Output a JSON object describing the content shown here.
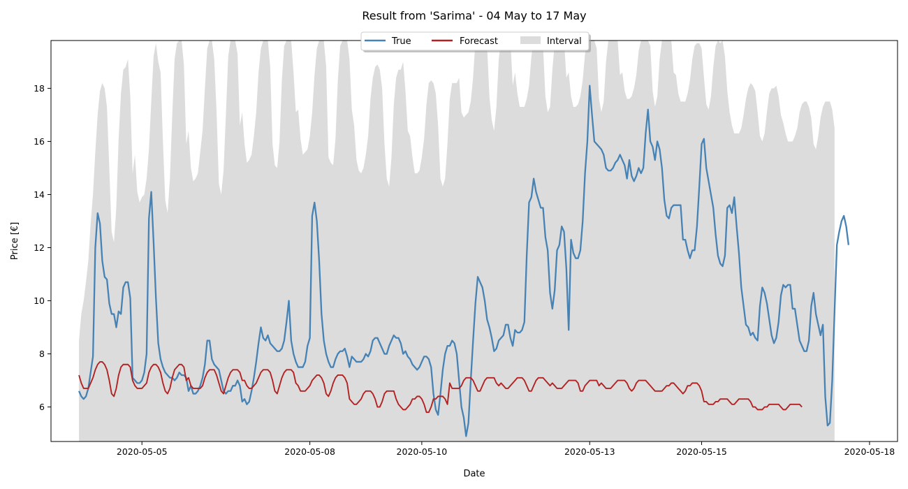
{
  "chart_data": {
    "type": "line",
    "title": "Result from 'Sarima' - 04 May to 17 May",
    "xlabel": "Date",
    "ylabel": "Price [€]",
    "x_range": [
      "2020-05-03 09:00",
      "2020-05-18 12:00"
    ],
    "ylim": [
      4.7,
      19.8
    ],
    "x_ticks": [
      "2020-05-05",
      "2020-05-08",
      "2020-05-10",
      "2020-05-13",
      "2020-05-15",
      "2020-05-18"
    ],
    "y_ticks": [
      6,
      8,
      10,
      12,
      14,
      16,
      18
    ],
    "grid": false,
    "legend": {
      "placement": "top-center",
      "entries": [
        "True",
        "Forecast",
        "Interval"
      ]
    },
    "x_start": "2020-05-03 21:00",
    "x_step_hours": 1,
    "series": [
      {
        "name": "True",
        "color": "#4682b4",
        "values": [
          6.6,
          6.4,
          6.3,
          6.4,
          6.7,
          7.3,
          7.9,
          12.0,
          13.3,
          12.9,
          11.5,
          10.9,
          10.8,
          9.9,
          9.5,
          9.5,
          9.0,
          9.6,
          9.5,
          10.5,
          10.7,
          10.7,
          10.1,
          7.1,
          7.0,
          6.9,
          6.9,
          7.0,
          7.3,
          8.0,
          13.1,
          14.1,
          12.2,
          10.1,
          8.4,
          7.8,
          7.5,
          7.3,
          7.2,
          7.1,
          7.1,
          7.0,
          7.1,
          7.3,
          7.2,
          7.2,
          7.1,
          6.6,
          6.8,
          6.5,
          6.5,
          6.6,
          6.8,
          7.1,
          7.6,
          8.5,
          8.5,
          7.8,
          7.6,
          7.5,
          7.4,
          7.0,
          6.6,
          6.5,
          6.6,
          6.6,
          6.8,
          6.8,
          7.0,
          6.8,
          6.2,
          6.3,
          6.1,
          6.2,
          6.6,
          7.1,
          7.7,
          8.4,
          9.0,
          8.6,
          8.5,
          8.7,
          8.4,
          8.3,
          8.2,
          8.1,
          8.1,
          8.2,
          8.5,
          9.2,
          10.0,
          8.5,
          8.0,
          7.7,
          7.5,
          7.5,
          7.5,
          7.7,
          8.3,
          8.6,
          13.2,
          13.7,
          13.0,
          11.5,
          9.5,
          8.5,
          8.0,
          7.7,
          7.5,
          7.5,
          7.8,
          8.0,
          8.1,
          8.1,
          8.2,
          7.9,
          7.5,
          7.9,
          7.8,
          7.7,
          7.7,
          7.7,
          7.8,
          8.0,
          7.9,
          8.1,
          8.5,
          8.6,
          8.6,
          8.4,
          8.2,
          8.0,
          8.0,
          8.3,
          8.5,
          8.7,
          8.6,
          8.6,
          8.4,
          8.0,
          8.1,
          7.9,
          7.8,
          7.6,
          7.5,
          7.4,
          7.5,
          7.7,
          7.9,
          7.9,
          7.8,
          7.5,
          6.5,
          5.9,
          5.7,
          6.5,
          7.4,
          8.0,
          8.3,
          8.3,
          8.5,
          8.4,
          8.0,
          7.0,
          6.0,
          5.6,
          4.9,
          5.4,
          7.0,
          8.5,
          9.9,
          10.9,
          10.7,
          10.5,
          10.0,
          9.3,
          9.0,
          8.6,
          8.1,
          8.2,
          8.5,
          8.6,
          8.7,
          9.1,
          9.1,
          8.6,
          8.3,
          8.9,
          8.8,
          8.8,
          8.9,
          9.2,
          11.7,
          13.7,
          13.9,
          14.6,
          14.1,
          13.8,
          13.5,
          13.5,
          12.4,
          11.9,
          10.3,
          9.7,
          10.4,
          11.9,
          12.1,
          12.8,
          12.6,
          11.2,
          8.9,
          12.3,
          11.8,
          11.6,
          11.6,
          11.9,
          13.0,
          14.8,
          16.0,
          18.1,
          17.0,
          16.0,
          15.9,
          15.8,
          15.7,
          15.5,
          15.0,
          14.9,
          14.9,
          15.0,
          15.2,
          15.3,
          15.5,
          15.3,
          15.1,
          14.6,
          15.3,
          14.7,
          14.5,
          14.7,
          15.0,
          14.8,
          15.0,
          16.3,
          17.2,
          16.0,
          15.8,
          15.3,
          16.0,
          15.7,
          15.0,
          13.8,
          13.2,
          13.1,
          13.5,
          13.6,
          13.6,
          13.6,
          13.6,
          12.3,
          12.3,
          11.9,
          11.6,
          11.9,
          11.9,
          12.8,
          14.3,
          15.9,
          16.1,
          15.0,
          14.5,
          14.0,
          13.5,
          12.5,
          11.7,
          11.4,
          11.3,
          11.7,
          13.5,
          13.6,
          13.3,
          13.9,
          12.8,
          11.8,
          10.5,
          9.8,
          9.1,
          9.0,
          8.7,
          8.8,
          8.6,
          8.5,
          9.8,
          10.5,
          10.3,
          9.9,
          9.3,
          8.7,
          8.4,
          8.6,
          9.2,
          10.2,
          10.6,
          10.5,
          10.6,
          10.6,
          9.7,
          9.7,
          9.1,
          8.5,
          8.3,
          8.1,
          8.1,
          8.5,
          9.8,
          10.3,
          9.5,
          9.1,
          8.7,
          9.1,
          6.4,
          5.3,
          5.4,
          7.0,
          9.6,
          12.1,
          12.6,
          13.0,
          13.2,
          12.8,
          12.1
        ]
      },
      {
        "name": "Forecast",
        "color": "#b22222",
        "values": [
          7.2,
          6.9,
          6.7,
          6.7,
          6.7,
          6.9,
          7.1,
          7.4,
          7.6,
          7.7,
          7.7,
          7.6,
          7.4,
          7.0,
          6.5,
          6.4,
          6.7,
          7.2,
          7.5,
          7.6,
          7.6,
          7.6,
          7.5,
          7.0,
          6.8,
          6.7,
          6.7,
          6.7,
          6.8,
          6.9,
          7.3,
          7.5,
          7.6,
          7.6,
          7.5,
          7.3,
          6.9,
          6.6,
          6.5,
          6.7,
          7.1,
          7.4,
          7.5,
          7.6,
          7.6,
          7.5,
          7.0,
          7.1,
          6.8,
          6.7,
          6.7,
          6.7,
          6.7,
          6.8,
          7.1,
          7.3,
          7.4,
          7.4,
          7.4,
          7.2,
          6.9,
          6.6,
          6.5,
          6.8,
          7.1,
          7.3,
          7.4,
          7.4,
          7.4,
          7.3,
          7.0,
          7.0,
          6.8,
          6.7,
          6.7,
          6.8,
          6.9,
          7.1,
          7.3,
          7.4,
          7.4,
          7.4,
          7.3,
          7.0,
          6.6,
          6.5,
          6.8,
          7.1,
          7.3,
          7.4,
          7.4,
          7.4,
          7.3,
          6.9,
          6.8,
          6.6,
          6.6,
          6.6,
          6.7,
          6.8,
          7.0,
          7.1,
          7.2,
          7.2,
          7.1,
          6.9,
          6.5,
          6.4,
          6.6,
          6.9,
          7.1,
          7.2,
          7.2,
          7.2,
          7.1,
          6.9,
          6.3,
          6.2,
          6.1,
          6.1,
          6.2,
          6.3,
          6.5,
          6.6,
          6.6,
          6.6,
          6.5,
          6.3,
          6.0,
          6.0,
          6.2,
          6.5,
          6.6,
          6.6,
          6.6,
          6.6,
          6.3,
          6.1,
          6.0,
          5.9,
          5.9,
          6.0,
          6.1,
          6.3,
          6.3,
          6.4,
          6.4,
          6.3,
          6.1,
          5.8,
          5.8,
          6.0,
          6.3,
          6.3,
          6.4,
          6.4,
          6.4,
          6.3,
          6.1,
          6.9,
          6.7,
          6.7,
          6.7,
          6.7,
          6.8,
          7.0,
          7.1,
          7.1,
          7.1,
          7.0,
          6.8,
          6.6,
          6.6,
          6.8,
          7.0,
          7.1,
          7.1,
          7.1,
          7.1,
          6.9,
          6.8,
          6.9,
          6.8,
          6.7,
          6.7,
          6.8,
          6.9,
          7.0,
          7.1,
          7.1,
          7.1,
          7.0,
          6.8,
          6.6,
          6.6,
          6.8,
          7.0,
          7.1,
          7.1,
          7.1,
          7.0,
          6.9,
          6.8,
          6.9,
          6.8,
          6.7,
          6.7,
          6.7,
          6.8,
          6.9,
          7.0,
          7.0,
          7.0,
          7.0,
          6.9,
          6.6,
          6.6,
          6.8,
          6.9,
          7.0,
          7.0,
          7.0,
          7.0,
          6.8,
          6.9,
          6.8,
          6.7,
          6.7,
          6.7,
          6.8,
          6.9,
          7.0,
          7.0,
          7.0,
          7.0,
          6.9,
          6.7,
          6.6,
          6.7,
          6.9,
          7.0,
          7.0,
          7.0,
          7.0,
          6.9,
          6.8,
          6.7,
          6.6,
          6.6,
          6.6,
          6.6,
          6.7,
          6.8,
          6.8,
          6.9,
          6.9,
          6.8,
          6.7,
          6.6,
          6.5,
          6.6,
          6.8,
          6.8,
          6.9,
          6.9,
          6.9,
          6.8,
          6.6,
          6.2,
          6.2,
          6.1,
          6.1,
          6.1,
          6.2,
          6.2,
          6.3,
          6.3,
          6.3,
          6.3,
          6.2,
          6.1,
          6.1,
          6.2,
          6.3,
          6.3,
          6.3,
          6.3,
          6.3,
          6.2,
          6.0,
          6.0,
          5.9,
          5.9,
          5.9,
          6.0,
          6.0,
          6.1,
          6.1,
          6.1,
          6.1,
          6.1,
          6.0,
          5.9,
          5.9,
          6.0,
          6.1,
          6.1,
          6.1,
          6.1,
          6.1,
          6.0
        ]
      },
      {
        "name": "Interval",
        "color": "#dcdcdc",
        "lower": 4.7,
        "upper": [
          8.5,
          9.5,
          10.0,
          10.7,
          11.5,
          12.9,
          14.0,
          15.6,
          17.0,
          17.9,
          18.2,
          18.0,
          17.3,
          15.0,
          12.6,
          12.2,
          13.5,
          16.1,
          17.8,
          18.7,
          18.8,
          19.1,
          17.7,
          14.8,
          15.5,
          14.1,
          13.7,
          13.9,
          14.0,
          14.6,
          15.7,
          17.5,
          19.2,
          19.7,
          19.0,
          18.6,
          16.0,
          13.8,
          13.3,
          14.6,
          17.0,
          19.1,
          19.7,
          19.8,
          19.8,
          18.9,
          15.9,
          16.4,
          15.0,
          14.5,
          14.6,
          14.8,
          15.6,
          16.4,
          18.0,
          19.5,
          19.8,
          19.8,
          19.1,
          17.1,
          14.4,
          14.0,
          14.9,
          17.0,
          19.2,
          19.8,
          19.8,
          19.8,
          19.3,
          16.6,
          17.1,
          15.9,
          15.2,
          15.3,
          15.5,
          16.2,
          17.1,
          18.6,
          19.5,
          19.8,
          19.8,
          19.8,
          18.8,
          15.9,
          15.1,
          15.0,
          16.0,
          18.3,
          19.6,
          19.8,
          19.8,
          19.8,
          18.6,
          17.1,
          17.2,
          16.1,
          15.5,
          15.6,
          15.7,
          16.2,
          17.1,
          18.5,
          19.5,
          19.8,
          19.8,
          19.8,
          18.8,
          15.4,
          15.2,
          15.1,
          16.1,
          18.3,
          19.6,
          19.8,
          19.8,
          19.8,
          19.1,
          17.2,
          16.6,
          15.3,
          14.9,
          14.8,
          15.0,
          15.5,
          16.2,
          17.6,
          18.4,
          18.8,
          18.9,
          18.7,
          18.0,
          15.9,
          14.6,
          14.3,
          15.4,
          17.4,
          18.4,
          18.7,
          18.7,
          19.0,
          17.9,
          16.4,
          16.2,
          15.4,
          14.8,
          14.8,
          14.9,
          15.4,
          16.1,
          17.4,
          18.2,
          18.3,
          18.2,
          17.8,
          16.6,
          14.6,
          14.3,
          14.6,
          15.9,
          17.6,
          18.2,
          18.2,
          18.2,
          18.4,
          17.1,
          16.9,
          17.0,
          17.1,
          17.5,
          18.4,
          19.8,
          19.8,
          19.8,
          19.8,
          19.8,
          19.6,
          17.7,
          16.8,
          16.4,
          17.3,
          19.1,
          19.8,
          19.8,
          19.8,
          19.8,
          19.8,
          18.1,
          18.6,
          17.8,
          17.3,
          17.3,
          17.3,
          17.6,
          18.1,
          19.2,
          19.8,
          19.8,
          19.8,
          19.8,
          19.6,
          17.7,
          17.1,
          17.3,
          18.7,
          19.7,
          19.8,
          19.8,
          19.8,
          19.8,
          18.4,
          18.6,
          17.7,
          17.3,
          17.3,
          17.4,
          17.7,
          18.3,
          19.3,
          19.8,
          19.8,
          19.8,
          19.8,
          19.5,
          17.6,
          17.1,
          17.5,
          19.0,
          19.8,
          19.8,
          19.8,
          19.8,
          19.8,
          18.5,
          18.6,
          17.9,
          17.6,
          17.6,
          17.7,
          18.0,
          18.5,
          19.4,
          19.8,
          19.8,
          19.8,
          19.8,
          19.6,
          17.9,
          17.3,
          17.7,
          19.1,
          19.8,
          19.8,
          19.8,
          19.8,
          19.8,
          18.6,
          18.5,
          17.8,
          17.5,
          17.5,
          17.5,
          17.8,
          18.3,
          19.1,
          19.6,
          19.7,
          19.7,
          19.5,
          18.4,
          17.4,
          17.2,
          17.7,
          18.8,
          19.6,
          19.8,
          19.7,
          19.8,
          19.2,
          17.9,
          17.1,
          16.6,
          16.3,
          16.3,
          16.3,
          16.5,
          17.0,
          17.6,
          18.0,
          18.2,
          18.1,
          17.9,
          17.1,
          16.2,
          16.0,
          16.3,
          17.1,
          17.8,
          18.0,
          18.0,
          18.1,
          17.7,
          17.0,
          16.7,
          16.3,
          16.0,
          16.0,
          16.0,
          16.2,
          16.5,
          17.1,
          17.4,
          17.5,
          17.5,
          17.3,
          16.9,
          15.9,
          15.7,
          16.2,
          16.9,
          17.3,
          17.5,
          17.5,
          17.5,
          17.2,
          16.5
        ]
      }
    ]
  }
}
